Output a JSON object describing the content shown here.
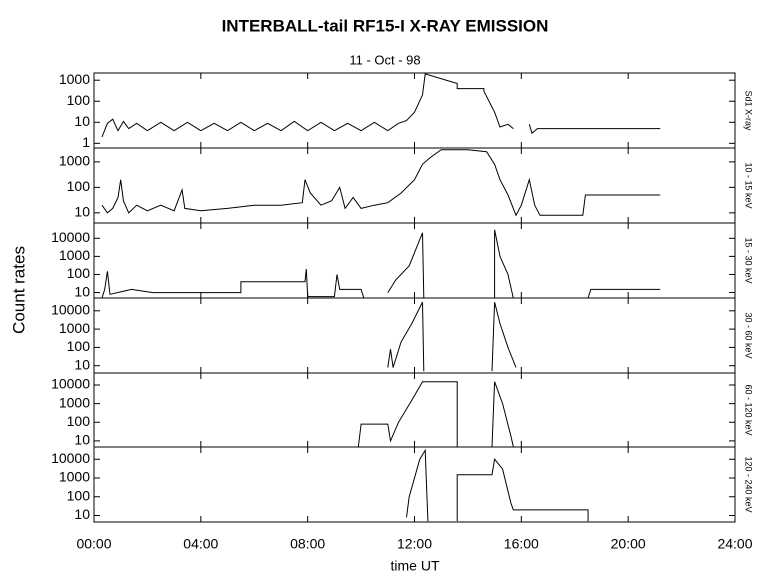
{
  "figure": {
    "title": "INTERBALL-tail  RF15-I   X-RAY  EMISSION",
    "subtitle": "11 - Oct - 98",
    "ylabel": "Count  rates",
    "xlabel": "time UT"
  },
  "chart_data": [
    {
      "type": "line",
      "label": "Sd1 X-ray",
      "log_y": true,
      "color": "#000000",
      "ylim": [
        0.6,
        2200
      ],
      "yticks": [
        1,
        10,
        100,
        1000
      ],
      "xlim": [
        0,
        24
      ],
      "x": [
        0.3,
        0.5,
        0.7,
        0.9,
        1.1,
        1.3,
        1.6,
        2.0,
        2.5,
        3.0,
        3.5,
        4.0,
        4.5,
        5.0,
        5.5,
        6.0,
        6.5,
        7.0,
        7.5,
        8.0,
        8.5,
        9.0,
        9.5,
        10.0,
        10.5,
        11.0,
        11.4,
        11.7,
        12.0,
        12.3,
        12.4,
        13.6,
        13.6,
        14.6,
        14.6,
        15.0,
        15.2,
        15.5,
        15.7,
        16.0,
        16.3,
        16.4,
        16.6,
        21.2
      ],
      "values": [
        2,
        9,
        14,
        4,
        11,
        5,
        9,
        4,
        10,
        4,
        10,
        4,
        9,
        4,
        10,
        4,
        9,
        4,
        11,
        4,
        10,
        4,
        9,
        4,
        10,
        4,
        9,
        12,
        30,
        200,
        2000,
        700,
        400,
        400,
        300,
        30,
        6,
        8,
        5,
        null,
        8,
        3,
        5,
        5
      ]
    },
    {
      "type": "line",
      "label": "10 - 15 keV",
      "log_y": true,
      "color": "#000000",
      "ylim": [
        4,
        3500
      ],
      "yticks": [
        10,
        100,
        1000
      ],
      "xlim": [
        0,
        24
      ],
      "x": [
        0.3,
        0.5,
        0.7,
        0.9,
        1.0,
        1.1,
        1.3,
        1.6,
        2.0,
        2.5,
        3.0,
        3.3,
        3.4,
        4.0,
        5.0,
        6.0,
        7.0,
        7.8,
        7.9,
        8.1,
        8.5,
        8.9,
        9.2,
        9.4,
        9.7,
        10.0,
        10.5,
        11.0,
        11.5,
        12.0,
        12.3,
        12.6,
        13.0,
        14.0,
        14.7,
        15.0,
        15.2,
        15.5,
        15.8,
        16.0,
        16.3,
        16.5,
        16.7,
        18.3,
        18.4,
        21.2
      ],
      "values": [
        20,
        10,
        15,
        40,
        200,
        30,
        10,
        20,
        12,
        20,
        12,
        80,
        15,
        12,
        15,
        20,
        20,
        25,
        200,
        60,
        20,
        30,
        100,
        15,
        40,
        15,
        20,
        25,
        60,
        200,
        800,
        1500,
        3000,
        3000,
        2500,
        800,
        200,
        50,
        8,
        20,
        200,
        20,
        8,
        8,
        50,
        50
      ]
    },
    {
      "type": "line",
      "label": "15 - 30 keV",
      "log_y": true,
      "color": "#000000",
      "ylim": [
        5,
        70000
      ],
      "yticks": [
        10,
        100,
        1000,
        10000
      ],
      "xlim": [
        0,
        24
      ],
      "x": [
        0.3,
        0.4,
        0.5,
        0.6,
        1.4,
        2.2,
        5.5,
        5.5,
        7.9,
        7.95,
        8.0,
        9.0,
        9.1,
        9.2,
        10.0,
        10.1,
        10.5,
        11.0,
        11.3,
        11.8,
        12.3,
        12.35,
        13.5,
        15.0,
        15.0,
        15.2,
        15.5,
        15.7,
        17.0,
        18.5,
        18.6,
        21.2
      ],
      "values": [
        5,
        15,
        150,
        8,
        15,
        10,
        10,
        40,
        40,
        200,
        6,
        6,
        100,
        15,
        15,
        5,
        null,
        10,
        50,
        300,
        20000,
        5,
        null,
        5,
        30000,
        1000,
        100,
        5,
        null,
        5,
        15,
        15
      ]
    },
    {
      "type": "line",
      "label": "30 - 60 keV",
      "log_y": true,
      "color": "#000000",
      "ylim": [
        4,
        50000
      ],
      "yticks": [
        10,
        100,
        1000,
        10000
      ],
      "xlim": [
        0,
        24
      ],
      "x": [
        11.0,
        11.1,
        11.2,
        11.5,
        11.9,
        12.3,
        12.35,
        13.5,
        14.9,
        15.0,
        15.2,
        15.5,
        15.8
      ],
      "values": [
        8,
        80,
        8,
        200,
        2000,
        30000,
        5,
        null,
        5,
        30000,
        2000,
        100,
        8
      ]
    },
    {
      "type": "line",
      "label": "60 - 120 keV",
      "log_y": true,
      "color": "#000000",
      "ylim": [
        4.7,
        44000
      ],
      "yticks": [
        10,
        100,
        1000,
        10000
      ],
      "xlim": [
        0,
        24
      ],
      "x": [
        9.9,
        10.0,
        11.0,
        11.1,
        11.4,
        11.9,
        12.3,
        12.4,
        13.6,
        13.6,
        14.2,
        14.9,
        15.0,
        15.3,
        15.6,
        15.7
      ],
      "values": [
        5,
        80,
        80,
        10,
        100,
        1500,
        15000,
        15000,
        15000,
        5,
        null,
        5,
        15000,
        1000,
        20,
        5
      ]
    },
    {
      "type": "line",
      "label": "120 - 240 keV",
      "log_y": true,
      "color": "#000000",
      "ylim": [
        4.5,
        45000
      ],
      "yticks": [
        10,
        100,
        1000,
        10000
      ],
      "xlim": [
        0,
        24
      ],
      "xticks": [
        {
          "value": 0,
          "label": "00:00"
        },
        {
          "value": 4,
          "label": "04:00"
        },
        {
          "value": 8,
          "label": "08:00"
        },
        {
          "value": 12,
          "label": "12:00"
        },
        {
          "value": 16,
          "label": "16:00"
        },
        {
          "value": 20,
          "label": "20:00"
        },
        {
          "value": 24,
          "label": "24:00"
        }
      ],
      "x": [
        11.7,
        11.8,
        12.2,
        12.4,
        12.5,
        13.0,
        13.6,
        13.6,
        14.9,
        15.0,
        15.3,
        15.6,
        15.7,
        18.5,
        18.5
      ],
      "values": [
        8,
        100,
        10000,
        30000,
        5,
        null,
        5,
        1500,
        1500,
        10000,
        3000,
        50,
        20,
        20,
        5
      ]
    }
  ]
}
